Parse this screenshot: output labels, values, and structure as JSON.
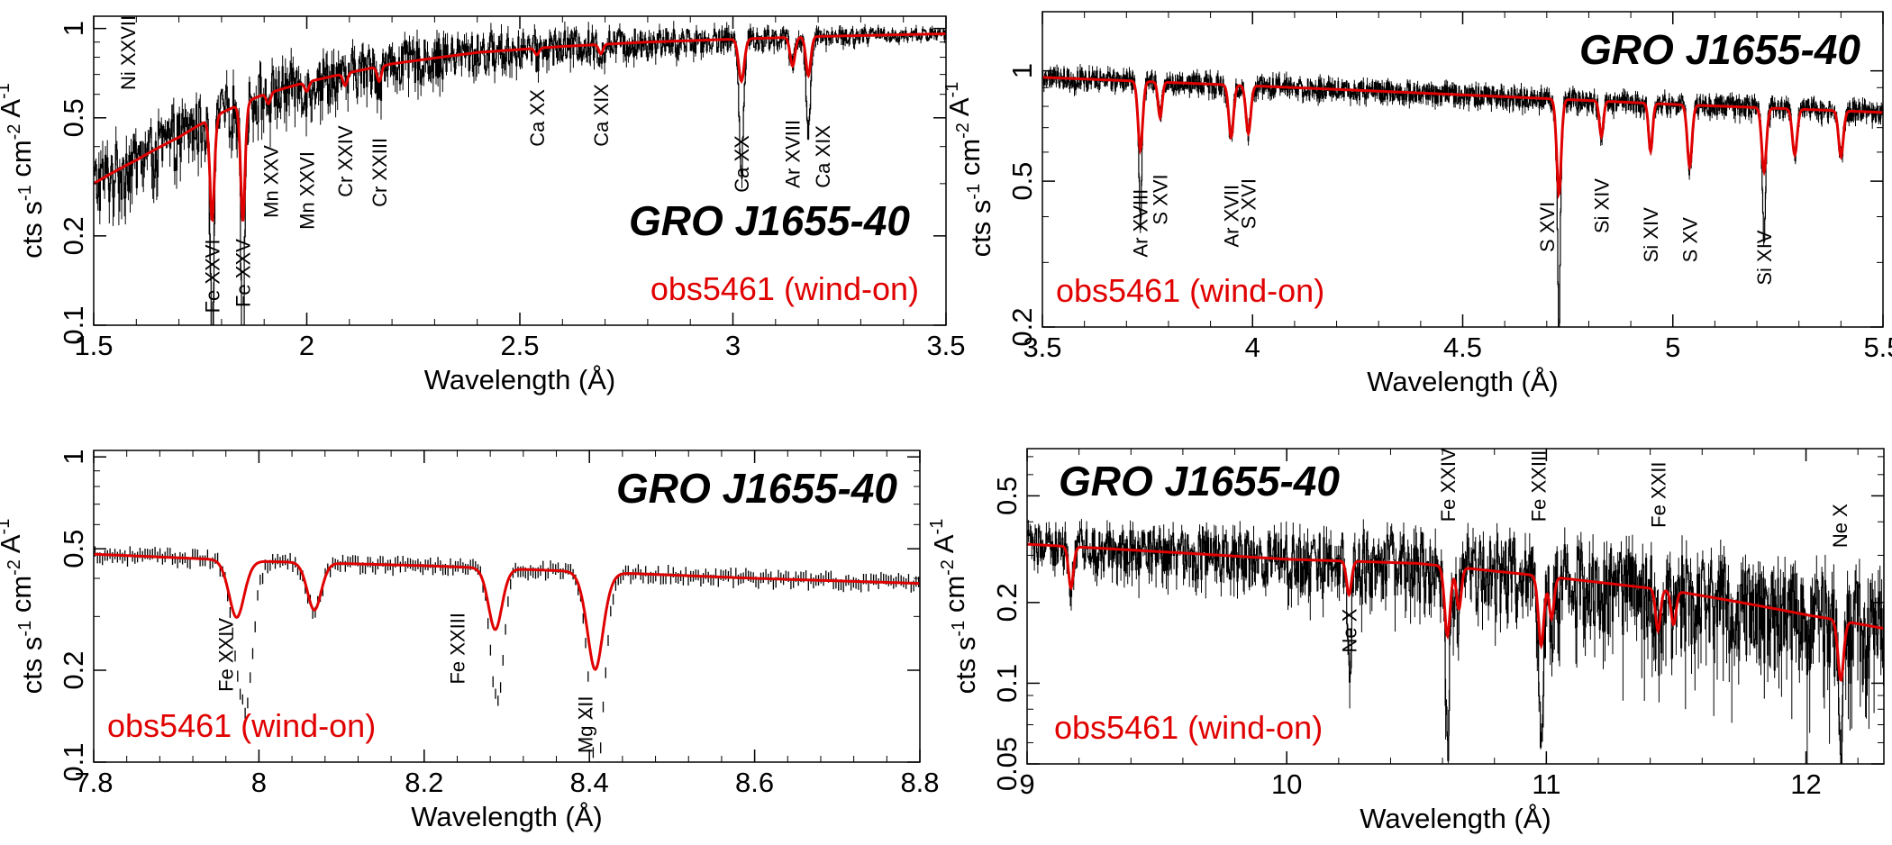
{
  "chart_data": [
    {
      "id": "p1",
      "type": "line",
      "object_title": "GRO J1655-40",
      "obs_label": "obs5461 (wind-on)",
      "title_pos": "lower-right",
      "xlabel": "Wavelength (Å)",
      "ylabel": "cts s-1 cm-2 A-1",
      "xlim": [
        1.5,
        3.5
      ],
      "ylim": [
        0.1,
        1.1
      ],
      "yscale": "log",
      "xticks": [
        1.5,
        2,
        2.5,
        3,
        3.5
      ],
      "xtick_labels": [
        "1.5",
        "2",
        "2.5",
        "3",
        "3.5"
      ],
      "yticks": [
        0.1,
        0.2,
        0.5,
        1
      ],
      "ytick_labels": [
        "0.1",
        "0.2",
        "0.5",
        "1"
      ],
      "continuum": [
        [
          1.5,
          0.3
        ],
        [
          1.6,
          0.36
        ],
        [
          1.7,
          0.43
        ],
        [
          1.8,
          0.52
        ],
        [
          1.9,
          0.6
        ],
        [
          2.0,
          0.66
        ],
        [
          2.2,
          0.76
        ],
        [
          2.4,
          0.83
        ],
        [
          2.6,
          0.87
        ],
        [
          2.8,
          0.9
        ],
        [
          3.0,
          0.92
        ],
        [
          3.2,
          0.94
        ],
        [
          3.5,
          0.96
        ]
      ],
      "model_lines": [
        {
          "x": 1.778,
          "depth": 0.55,
          "width": 0.006
        },
        {
          "x": 1.85,
          "depth": 0.6,
          "width": 0.006
        },
        {
          "x": 1.91,
          "depth": 0.08,
          "width": 0.005
        },
        {
          "x": 2.0,
          "depth": 0.07,
          "width": 0.005
        },
        {
          "x": 2.09,
          "depth": 0.09,
          "width": 0.005
        },
        {
          "x": 2.17,
          "depth": 0.11,
          "width": 0.005
        },
        {
          "x": 2.54,
          "depth": 0.05,
          "width": 0.005
        },
        {
          "x": 2.69,
          "depth": 0.07,
          "width": 0.005
        },
        {
          "x": 3.02,
          "depth": 0.28,
          "width": 0.007
        },
        {
          "x": 3.14,
          "depth": 0.2,
          "width": 0.006
        },
        {
          "x": 3.177,
          "depth": 0.26,
          "width": 0.006
        }
      ],
      "data_lines": [
        {
          "x": 1.778,
          "depth": 0.7,
          "width": 0.004
        },
        {
          "x": 1.85,
          "depth": 0.72,
          "width": 0.004
        },
        {
          "x": 3.02,
          "depth": 0.5,
          "width": 0.005
        },
        {
          "x": 3.177,
          "depth": 0.35,
          "width": 0.005
        }
      ],
      "noise": 0.2,
      "bins": 900,
      "style": "hist",
      "labels": [
        {
          "text": "Ni XXVII",
          "x": 1.58,
          "y": 0.62
        },
        {
          "text": "Fe XXVI",
          "x": 1.778,
          "y": 0.11
        },
        {
          "text": "Fe XXV",
          "x": 1.85,
          "y": 0.115
        },
        {
          "text": "Mn XXV",
          "x": 1.915,
          "y": 0.23
        },
        {
          "text": "Mn XXVI",
          "x": 2.0,
          "y": 0.21
        },
        {
          "text": "Cr XXIV",
          "x": 2.09,
          "y": 0.27
        },
        {
          "text": "Cr XXIII",
          "x": 2.17,
          "y": 0.25
        },
        {
          "text": "Ca XX",
          "x": 2.54,
          "y": 0.4
        },
        {
          "text": "Ca XIX",
          "x": 2.69,
          "y": 0.4
        },
        {
          "text": "Ca XX",
          "x": 3.02,
          "y": 0.28
        },
        {
          "text": "Ar XVIII",
          "x": 3.14,
          "y": 0.29
        },
        {
          "text": "Ca XIX",
          "x": 3.21,
          "y": 0.29
        }
      ]
    },
    {
      "id": "p2",
      "type": "line",
      "object_title": "GRO J1655-40",
      "obs_label": "obs5461 (wind-on)",
      "title_pos": "upper-right",
      "xlabel": "Wavelength (Å)",
      "ylabel": "cts s-1 cm-2 A-1",
      "xlim": [
        3.5,
        5.5
      ],
      "ylim": [
        0.2,
        1.45
      ],
      "yscale": "log",
      "xticks": [
        3.5,
        4,
        4.5,
        5,
        5.5
      ],
      "xtick_labels": [
        "3.5",
        "4",
        "4.5",
        "5",
        "5.5"
      ],
      "yticks": [
        0.2,
        0.5,
        1
      ],
      "ytick_labels": [
        "0.2",
        "0.5",
        "1"
      ],
      "continuum": [
        [
          3.5,
          0.96
        ],
        [
          3.8,
          0.93
        ],
        [
          4.2,
          0.89
        ],
        [
          4.6,
          0.85
        ],
        [
          5.0,
          0.81
        ],
        [
          5.5,
          0.77
        ]
      ],
      "model_lines": [
        {
          "x": 3.733,
          "depth": 0.35,
          "width": 0.006
        },
        {
          "x": 3.78,
          "depth": 0.2,
          "width": 0.005
        },
        {
          "x": 3.949,
          "depth": 0.28,
          "width": 0.006
        },
        {
          "x": 3.99,
          "depth": 0.26,
          "width": 0.006
        },
        {
          "x": 4.729,
          "depth": 0.45,
          "width": 0.006
        },
        {
          "x": 4.83,
          "depth": 0.2,
          "width": 0.005
        },
        {
          "x": 4.947,
          "depth": 0.26,
          "width": 0.005
        },
        {
          "x": 5.04,
          "depth": 0.32,
          "width": 0.006
        },
        {
          "x": 5.217,
          "depth": 0.33,
          "width": 0.006
        },
        {
          "x": 5.29,
          "depth": 0.25,
          "width": 0.006
        },
        {
          "x": 5.4,
          "depth": 0.25,
          "width": 0.006
        }
      ],
      "data_lines": [
        {
          "x": 3.733,
          "depth": 0.4,
          "width": 0.003
        },
        {
          "x": 4.729,
          "depth": 0.6,
          "width": 0.003
        },
        {
          "x": 5.217,
          "depth": 0.4,
          "width": 0.003
        }
      ],
      "noise": 0.06,
      "bins": 1300,
      "style": "hist",
      "labels": [
        {
          "text": "Ar XVIII",
          "x": 3.733,
          "y": 0.31
        },
        {
          "text": "S XVI",
          "x": 3.78,
          "y": 0.38
        },
        {
          "text": "Ar XVII",
          "x": 3.949,
          "y": 0.33
        },
        {
          "text": "S XVI",
          "x": 3.99,
          "y": 0.37
        },
        {
          "text": "S XVI",
          "x": 4.7,
          "y": 0.32
        },
        {
          "text": "Si XIV",
          "x": 4.83,
          "y": 0.36
        },
        {
          "text": "Si XIV",
          "x": 4.947,
          "y": 0.3
        },
        {
          "text": "S XV",
          "x": 5.04,
          "y": 0.3
        },
        {
          "text": "Si XIV",
          "x": 5.217,
          "y": 0.26
        }
      ]
    },
    {
      "id": "p3",
      "type": "line",
      "object_title": "GRO J1655-40",
      "obs_label": "obs5461 (wind-on)",
      "title_pos": "upper-right",
      "xlabel": "Wavelength (Å)",
      "ylabel": "cts s-1 cm-2 A-1",
      "xlim": [
        7.8,
        8.8
      ],
      "ylim": [
        0.1,
        1.05
      ],
      "yscale": "log",
      "xticks": [
        7.8,
        8,
        8.2,
        8.4,
        8.6,
        8.8
      ],
      "xtick_labels": [
        "7.8",
        "8",
        "8.2",
        "8.4",
        "8.6",
        "8.8"
      ],
      "yticks": [
        0.1,
        0.2,
        0.5,
        1
      ],
      "ytick_labels": [
        "0.1",
        "0.2",
        "0.5",
        "1"
      ],
      "continuum": [
        [
          7.8,
          0.48
        ],
        [
          8.0,
          0.455
        ],
        [
          8.2,
          0.44
        ],
        [
          8.4,
          0.42
        ],
        [
          8.6,
          0.4
        ],
        [
          8.8,
          0.385
        ]
      ],
      "model_lines": [
        {
          "x": 7.973,
          "depth": 0.35,
          "width": 0.01
        },
        {
          "x": 8.067,
          "depth": 0.3,
          "width": 0.009
        },
        {
          "x": 8.286,
          "depth": 0.37,
          "width": 0.009
        },
        {
          "x": 8.407,
          "depth": 0.52,
          "width": 0.011
        }
      ],
      "data_lines": [
        {
          "x": 7.985,
          "depth": 0.6,
          "width": 0.01
        },
        {
          "x": 8.29,
          "depth": 0.45,
          "width": 0.008
        },
        {
          "x": 8.41,
          "depth": 0.55,
          "width": 0.01
        }
      ],
      "noise": 0.04,
      "bins": 330,
      "style": "errbars",
      "labels": [
        {
          "text": "Fe XXIV",
          "x": 7.96,
          "y": 0.17
        },
        {
          "text": "Fe XXIII",
          "x": 8.24,
          "y": 0.18
        },
        {
          "text": "Mg XII",
          "x": 8.395,
          "y": 0.107
        }
      ]
    },
    {
      "id": "p4",
      "type": "line",
      "object_title": "GRO J1655-40",
      "obs_label": "obs5461 (wind-on)",
      "title_pos": "upper-left",
      "xlabel": "Wavelength (Å)",
      "ylabel": "cts s-1 cm-2 A-1",
      "xlim": [
        9,
        12.3
      ],
      "ylim": [
        0.05,
        0.75
      ],
      "yscale": "log",
      "xticks": [
        9,
        10,
        11,
        12
      ],
      "xtick_labels": [
        "9",
        "10",
        "11",
        "12"
      ],
      "yticks": [
        0.05,
        0.1,
        0.2,
        0.5
      ],
      "ytick_labels": [
        "0.05",
        "0.1",
        "0.2",
        "0.5"
      ],
      "continuum": [
        [
          9.0,
          0.33
        ],
        [
          9.5,
          0.31
        ],
        [
          10.0,
          0.29
        ],
        [
          10.5,
          0.28
        ],
        [
          11.0,
          0.25
        ],
        [
          11.5,
          0.22
        ],
        [
          12.0,
          0.18
        ],
        [
          12.3,
          0.16
        ]
      ],
      "model_lines": [
        {
          "x": 9.169,
          "depth": 0.3,
          "width": 0.01
        },
        {
          "x": 10.24,
          "depth": 0.25,
          "width": 0.01
        },
        {
          "x": 10.619,
          "depth": 0.45,
          "width": 0.012
        },
        {
          "x": 10.663,
          "depth": 0.3,
          "width": 0.01
        },
        {
          "x": 10.98,
          "depth": 0.45,
          "width": 0.012
        },
        {
          "x": 11.02,
          "depth": 0.3,
          "width": 0.01
        },
        {
          "x": 11.43,
          "depth": 0.3,
          "width": 0.01
        },
        {
          "x": 11.49,
          "depth": 0.25,
          "width": 0.01
        },
        {
          "x": 12.134,
          "depth": 0.4,
          "width": 0.012
        }
      ],
      "data_lines": [
        {
          "x": 10.24,
          "depth": 0.45,
          "width": 0.008
        },
        {
          "x": 10.619,
          "depth": 0.65,
          "width": 0.008
        },
        {
          "x": 10.98,
          "depth": 0.6,
          "width": 0.008
        },
        {
          "x": 12.134,
          "depth": 0.5,
          "width": 0.008
        }
      ],
      "noise": 0.3,
      "bins": 1000,
      "style": "hist",
      "labels": [
        {
          "text": "Ne X",
          "x": 10.24,
          "y": 0.13
        },
        {
          "text": "Fe XXIV",
          "x": 10.62,
          "y": 0.4
        },
        {
          "text": "Fe XXIII",
          "x": 10.97,
          "y": 0.4
        },
        {
          "text": "Fe XXII",
          "x": 11.43,
          "y": 0.38
        },
        {
          "text": "Ne X",
          "x": 12.13,
          "y": 0.32
        }
      ]
    }
  ],
  "colors": {
    "model": "#e00000",
    "data": "#000000",
    "obs_label": "#e00000"
  }
}
